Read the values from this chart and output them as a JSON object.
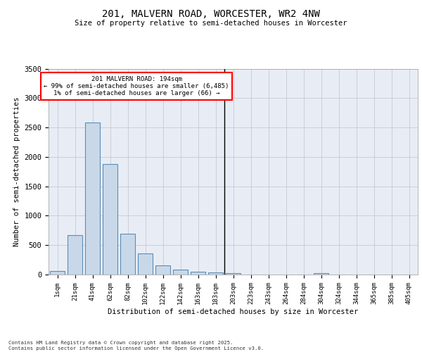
{
  "title1": "201, MALVERN ROAD, WORCESTER, WR2 4NW",
  "title2": "Size of property relative to semi-detached houses in Worcester",
  "xlabel": "Distribution of semi-detached houses by size in Worcester",
  "ylabel": "Number of semi-detached properties",
  "bins": [
    "1sqm",
    "21sqm",
    "41sqm",
    "62sqm",
    "82sqm",
    "102sqm",
    "122sqm",
    "142sqm",
    "163sqm",
    "183sqm",
    "203sqm",
    "223sqm",
    "243sqm",
    "264sqm",
    "284sqm",
    "304sqm",
    "324sqm",
    "344sqm",
    "365sqm",
    "385sqm",
    "405sqm"
  ],
  "values": [
    55,
    670,
    2590,
    1880,
    700,
    355,
    155,
    80,
    45,
    30,
    20,
    0,
    0,
    0,
    0,
    25,
    0,
    0,
    0,
    0,
    0
  ],
  "bar_color": "#c8d8e8",
  "bar_edge_color": "#5b8db8",
  "grid_color": "#c8c8d0",
  "bg_color": "#e8edf5",
  "annotation_text1": "201 MALVERN ROAD: 194sqm",
  "annotation_text2": "← 99% of semi-detached houses are smaller (6,485)",
  "annotation_text3": "1% of semi-detached houses are larger (66) →",
  "vline_bin_index": 10,
  "ylim": [
    0,
    3500
  ],
  "yticks": [
    0,
    500,
    1000,
    1500,
    2000,
    2500,
    3000,
    3500
  ],
  "footer1": "Contains HM Land Registry data © Crown copyright and database right 2025.",
  "footer2": "Contains public sector information licensed under the Open Government Licence v3.0."
}
